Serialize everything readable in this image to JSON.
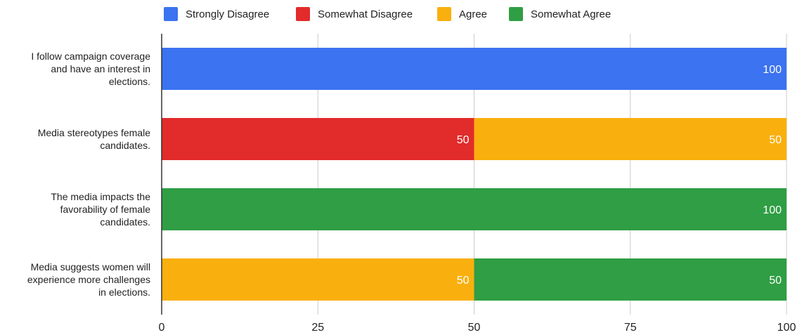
{
  "chart_data": {
    "type": "bar",
    "orientation": "horizontal",
    "stacked": true,
    "categories": [
      [
        "I follow campaign coverage",
        "and have an interest in",
        "elections."
      ],
      [
        "Media stereotypes female",
        "candidates."
      ],
      [
        "The media impacts the",
        "favorability of female",
        "candidates."
      ],
      [
        "Media suggests women will",
        "experience more challenges",
        "in elections."
      ]
    ],
    "series": [
      {
        "name": "Strongly Disagree",
        "color": "#3b73f0",
        "values": [
          100,
          0,
          0,
          0
        ]
      },
      {
        "name": "Somewhat Disagree",
        "color": "#e22b2b",
        "values": [
          0,
          50,
          0,
          0
        ]
      },
      {
        "name": "Agree",
        "color": "#f9b00e",
        "values": [
          0,
          50,
          0,
          50
        ]
      },
      {
        "name": "Somewhat Agree",
        "color": "#2f9e44",
        "values": [
          0,
          0,
          100,
          50
        ]
      }
    ],
    "xlim": [
      0,
      100
    ],
    "xticks": [
      0,
      25,
      50,
      75,
      100
    ],
    "grid": true,
    "legend_position": "top",
    "data_labels": true
  }
}
